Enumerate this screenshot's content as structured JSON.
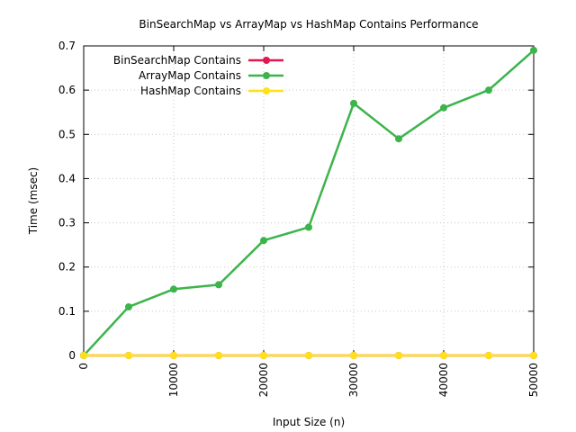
{
  "chart_data": {
    "type": "line",
    "title": "BinSearchMap vs ArrayMap vs HashMap Contains Performance",
    "xlabel": "Input Size (n)",
    "ylabel": "Time (msec)",
    "xlim": [
      0,
      50000
    ],
    "ylim": [
      0,
      0.7
    ],
    "x_ticks": [
      "0",
      "10000",
      "20000",
      "30000",
      "40000",
      "50000"
    ],
    "x_tick_values": [
      0,
      10000,
      20000,
      30000,
      40000,
      50000
    ],
    "y_ticks": [
      "0",
      "0.1",
      "0.2",
      "0.3",
      "0.4",
      "0.5",
      "0.6",
      "0.7"
    ],
    "y_tick_values": [
      0,
      0.1,
      0.2,
      0.3,
      0.4,
      0.5,
      0.6,
      0.7
    ],
    "grid": true,
    "legend_position": "top-left",
    "x": [
      0,
      5000,
      10000,
      15000,
      20000,
      25000,
      30000,
      35000,
      40000,
      45000,
      50000
    ],
    "series": [
      {
        "name": "BinSearchMap Contains",
        "color": "#e0194f",
        "values": [
          0,
          0,
          0,
          0,
          0,
          0,
          0,
          0,
          0,
          0,
          0
        ]
      },
      {
        "name": "ArrayMap Contains",
        "color": "#3cb44b",
        "values": [
          0,
          0.11,
          0.15,
          0.16,
          0.26,
          0.29,
          0.57,
          0.49,
          0.56,
          0.6,
          0.69
        ]
      },
      {
        "name": "HashMap Contains",
        "color": "#ffe119",
        "values": [
          0,
          0,
          0,
          0,
          0,
          0,
          0,
          0,
          0,
          0,
          0
        ]
      }
    ]
  }
}
